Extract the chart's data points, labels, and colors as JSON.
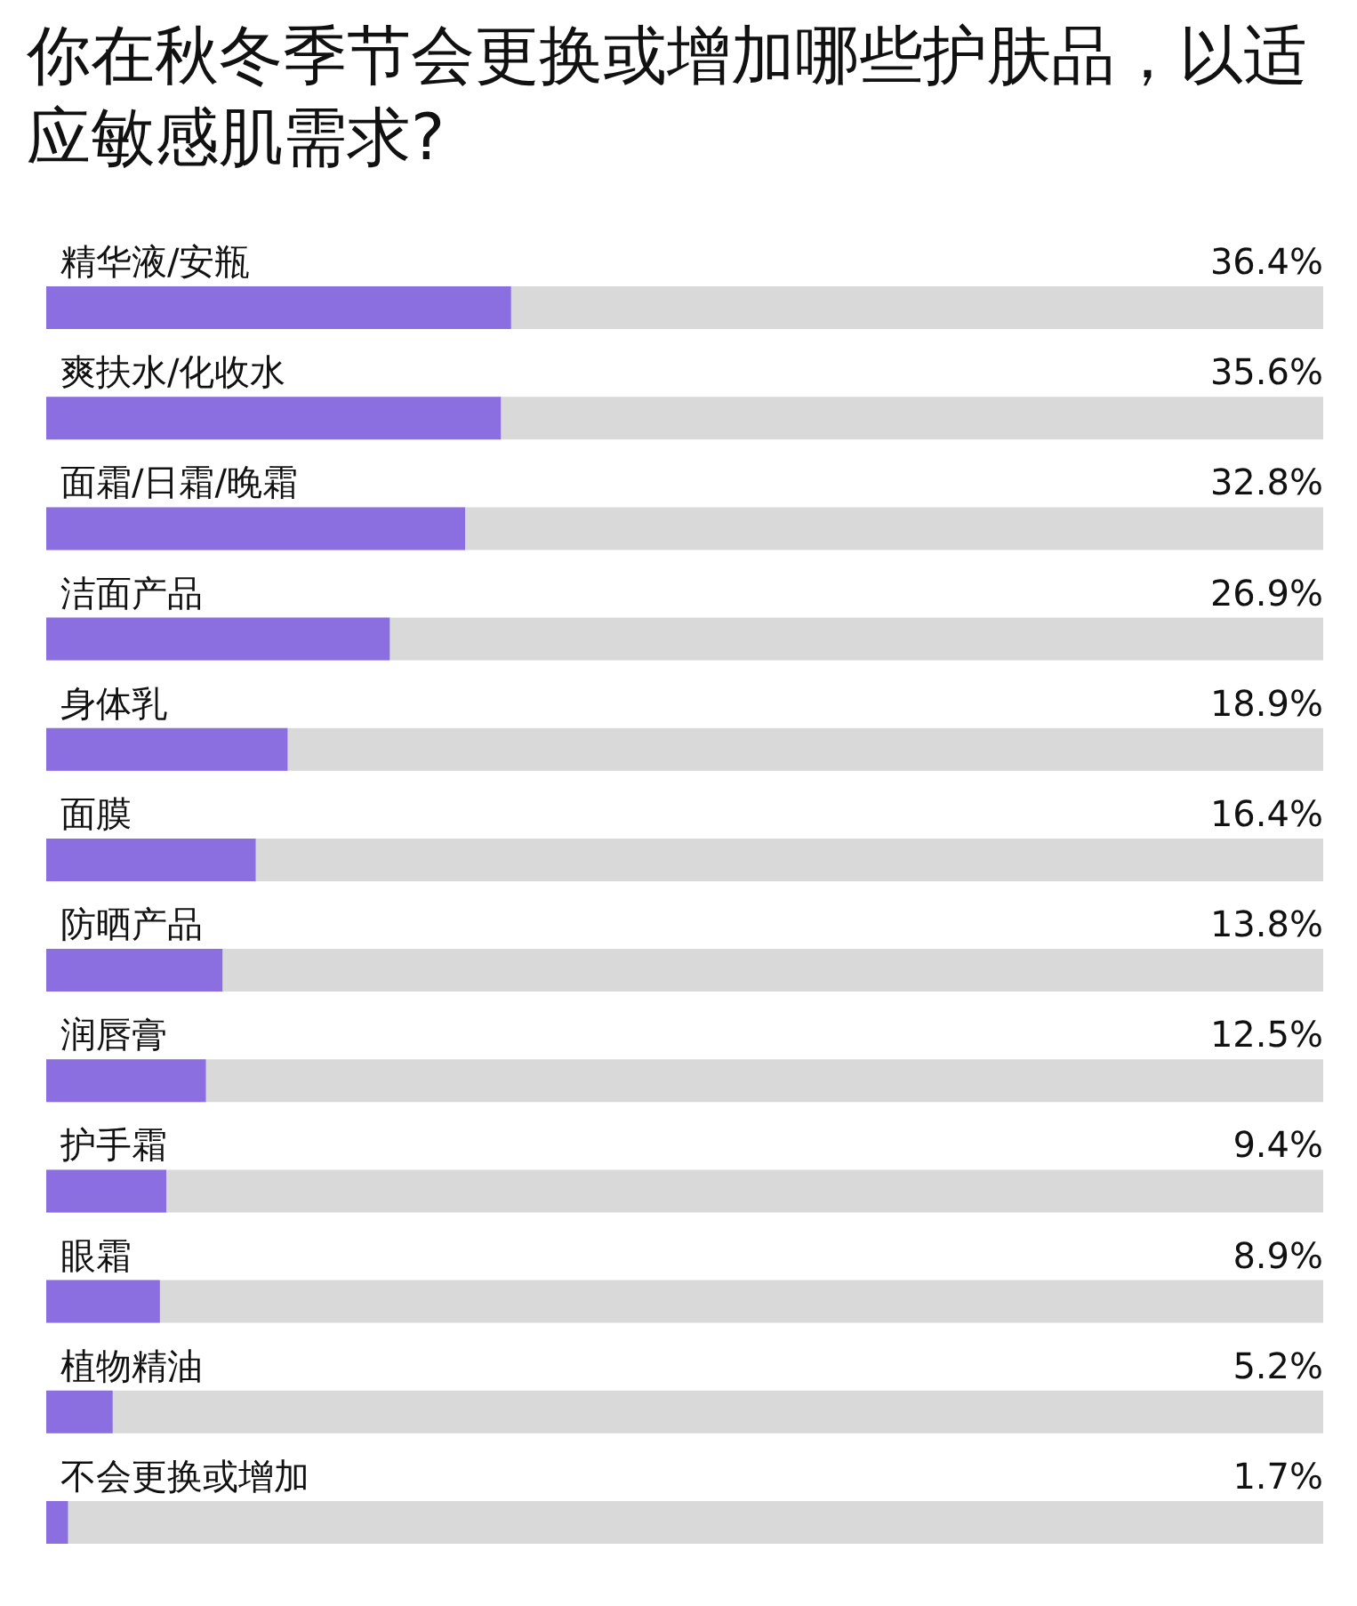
{
  "chart_data": {
    "type": "bar",
    "orientation": "horizontal",
    "title": "你在秋冬季节会更换或增加哪些护肤品，以适应敏感肌需求?",
    "categories": [
      "精华液/安瓶",
      "爽扶水/化收水",
      "面霜/日霜/晚霜",
      "洁面产品",
      "身体乳",
      "面膜",
      "防晒产品",
      "润唇膏",
      "护手霜",
      "眼霜",
      "植物精油",
      "不会更换或增加"
    ],
    "values": [
      36.4,
      35.6,
      32.8,
      26.9,
      18.9,
      16.4,
      13.8,
      12.5,
      9.4,
      8.9,
      5.2,
      1.7
    ],
    "value_labels": [
      "36.4%",
      "35.6%",
      "32.8%",
      "26.9%",
      "18.9%",
      "16.4%",
      "13.8%",
      "12.5%",
      "9.4%",
      "8.9%",
      "5.2%",
      "1.7%"
    ],
    "color": "#8b6fe0",
    "xlim": [
      0,
      100
    ]
  }
}
